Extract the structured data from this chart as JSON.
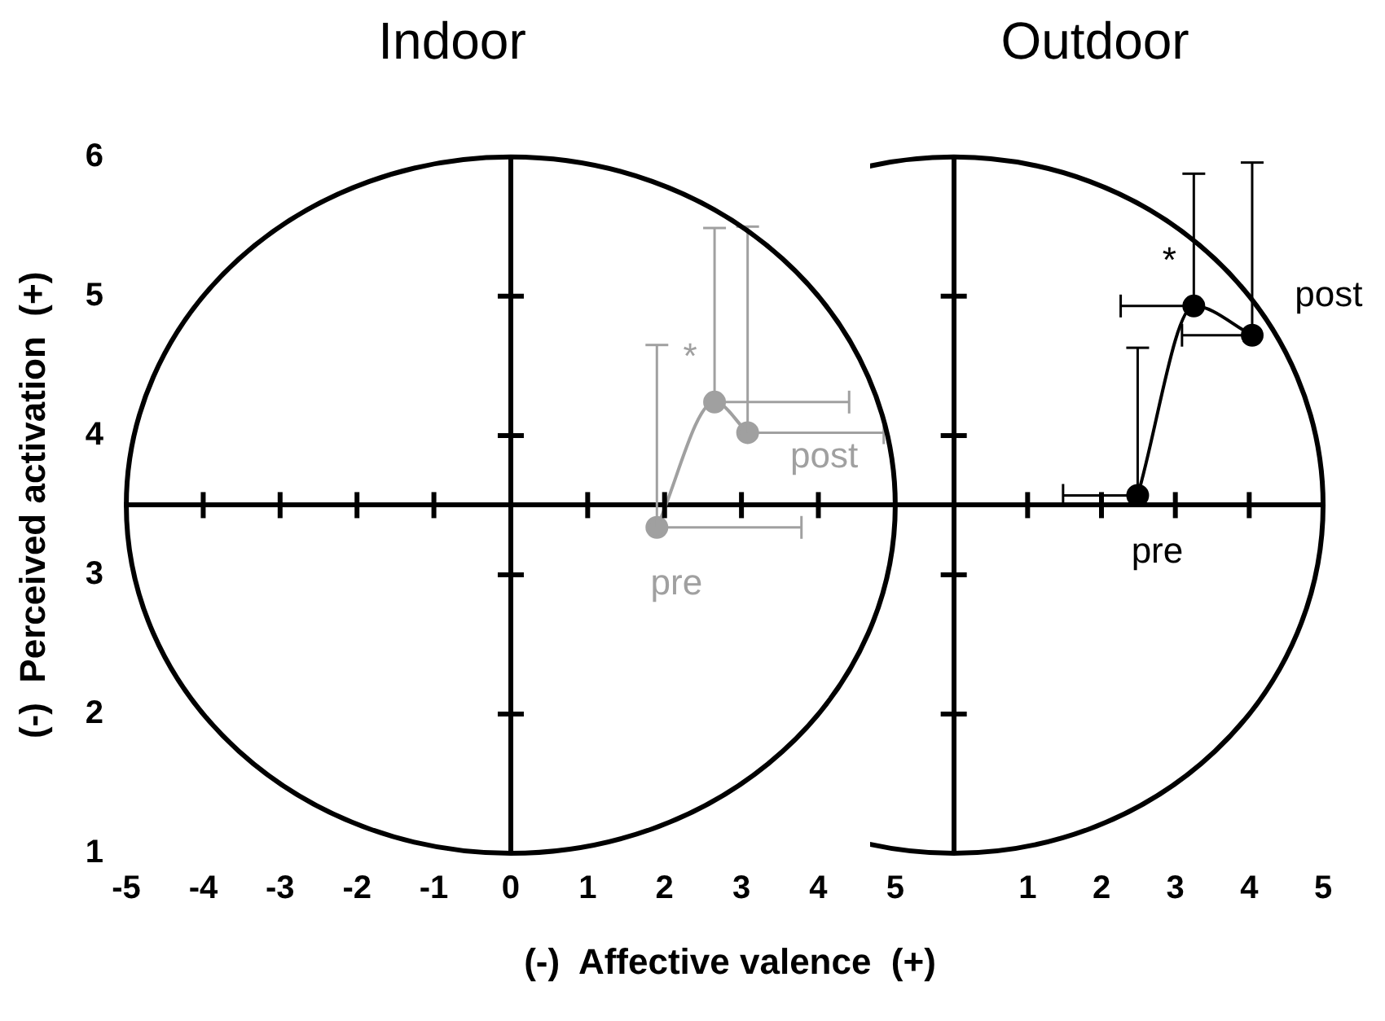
{
  "chart_data": [
    {
      "type": "line",
      "title": "Indoor",
      "ylabel": "(-)  Perceived activation  (+)",
      "xlabel": "(-)  Affective valence  (+)",
      "x": [
        1.9,
        2.65,
        3.08
      ],
      "xlim": [
        -5,
        5
      ],
      "xticks": [
        -5,
        -4,
        -3,
        -2,
        -1,
        0,
        1,
        2,
        3,
        4,
        5
      ],
      "ylim": [
        1,
        6
      ],
      "yticks": [
        1,
        2,
        3,
        4,
        5,
        6
      ],
      "grid": false,
      "legend": false,
      "marker": "circle",
      "line_style": "solid",
      "ref_lines": [
        {
          "axis": "x",
          "value": 0
        },
        {
          "axis": "y",
          "value": 3.5
        }
      ],
      "series": [
        {
          "color": "#a0a0a0",
          "values": [
            3.34,
            4.24,
            4.02
          ],
          "errors": [
            [
              3.34,
              4.65
            ],
            [
              4.24,
              5.49
            ],
            [
              4.02,
              5.5
            ]
          ],
          "xerrors": [
            [
              1.9,
              3.78
            ],
            [
              2.65,
              4.4
            ],
            [
              3.08,
              4.85
            ]
          ]
        }
      ],
      "annotations": [
        {
          "text": "*",
          "x": 2.65,
          "y": 4.24
        },
        {
          "text": "pre",
          "x": 1.9,
          "y": 3.34
        },
        {
          "text": "post",
          "x": 3.08,
          "y": 4.02
        }
      ]
    },
    {
      "type": "line",
      "title": "Outdoor",
      "x": [
        2.49,
        3.25,
        4.04
      ],
      "xlim": [
        -1,
        5
      ],
      "xticks": [
        1,
        2,
        3,
        4,
        5
      ],
      "ylim": [
        1,
        6
      ],
      "yticks": [
        1,
        2,
        3,
        4,
        5,
        6
      ],
      "tick_labels": "x",
      "grid": false,
      "legend": false,
      "marker": "circle",
      "line_style": "solid",
      "ref_lines": [
        {
          "axis": "x",
          "value": 0
        },
        {
          "axis": "y",
          "value": 3.5
        }
      ],
      "series": [
        {
          "color": "#000000",
          "values": [
            3.57,
            4.93,
            4.72
          ],
          "errors": [
            [
              3.57,
              4.63
            ],
            [
              4.93,
              5.88
            ],
            [
              4.72,
              5.96
            ]
          ],
          "xerrors": [
            [
              1.48,
              2.49
            ],
            [
              2.26,
              3.25
            ],
            [
              3.09,
              4.04
            ]
          ]
        }
      ],
      "annotations": [
        {
          "text": "*",
          "x": 3.25,
          "y": 4.93
        },
        {
          "text": "pre",
          "x": 2.49,
          "y": 3.57
        },
        {
          "text": "post",
          "x": 4.04,
          "y": 4.72
        }
      ]
    }
  ]
}
